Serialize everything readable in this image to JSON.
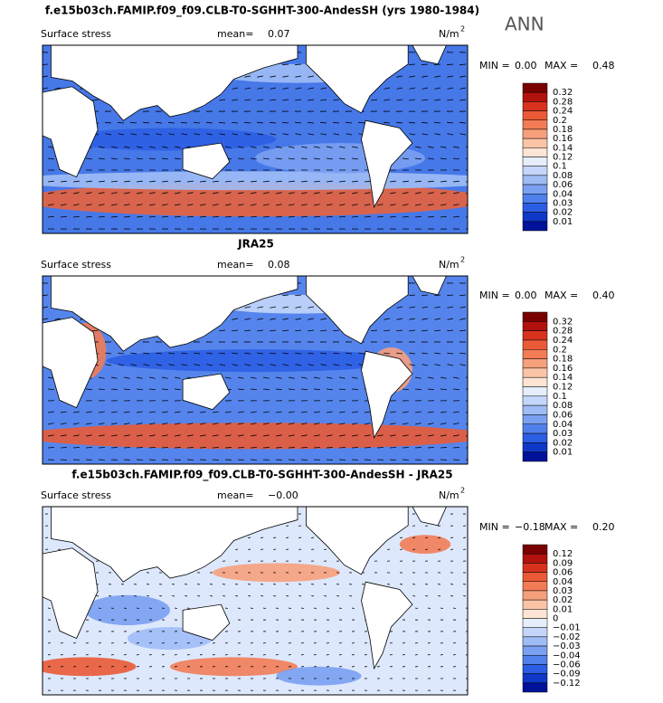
{
  "season": "ANN",
  "panels": [
    {
      "title": "f.e15b03ch.FAMIP.f09_f09.CLB-T0-SGHHT-300-AndesSH (yrs 1980-1984)",
      "variable": "Surface stress",
      "mean_label": "mean=",
      "mean": "0.07",
      "units": "N/m",
      "units_exponent": "2",
      "min_label": "MIN =",
      "min": "0.00",
      "max_label": "MAX =",
      "max": "0.48",
      "colorbar": {
        "labels": [
          "0.32",
          "0.28",
          "0.24",
          "0.2",
          "0.18",
          "0.16",
          "0.14",
          "0.12",
          "0.1",
          "0.08",
          "0.06",
          "0.04",
          "0.03",
          "0.02",
          "0.01"
        ],
        "colors": [
          "#7a0000",
          "#b2120e",
          "#d8321e",
          "#ea5a36",
          "#f27c56",
          "#f7a07c",
          "#fbc4a6",
          "#fde4d4",
          "#e6eefc",
          "#c4d6fa",
          "#9fbcf6",
          "#7aa0f2",
          "#5080ec",
          "#2c5ee4",
          "#1038c8",
          "#00129a"
        ]
      }
    },
    {
      "title": "JRA25",
      "variable": "Surface stress",
      "mean_label": "mean=",
      "mean": "0.08",
      "units": "N/m",
      "units_exponent": "2",
      "min_label": "MIN =",
      "min": "0.00",
      "max_label": "MAX =",
      "max": "0.40",
      "colorbar": {
        "labels": [
          "0.32",
          "0.28",
          "0.24",
          "0.2",
          "0.18",
          "0.16",
          "0.14",
          "0.12",
          "0.1",
          "0.08",
          "0.06",
          "0.04",
          "0.03",
          "0.02",
          "0.01"
        ],
        "colors": [
          "#7a0000",
          "#b2120e",
          "#d8321e",
          "#ea5a36",
          "#f27c56",
          "#f7a07c",
          "#fbc4a6",
          "#fde4d4",
          "#e6eefc",
          "#c4d6fa",
          "#9fbcf6",
          "#7aa0f2",
          "#5080ec",
          "#2c5ee4",
          "#1038c8",
          "#00129a"
        ]
      }
    },
    {
      "title": "f.e15b03ch.FAMIP.f09_f09.CLB-T0-SGHHT-300-AndesSH - JRA25",
      "variable": "Surface stress",
      "mean_label": "mean=",
      "mean": "−0.00",
      "units": "N/m",
      "units_exponent": "2",
      "min_label": "MIN =",
      "min": "−0.18",
      "max_label": "MAX =",
      "max": "0.20",
      "colorbar": {
        "labels": [
          "0.12",
          "0.09",
          "0.06",
          "0.04",
          "0.03",
          "0.02",
          "0.01",
          "0",
          "−0.01",
          "−0.02",
          "−0.03",
          "−0.04",
          "−0.06",
          "−0.09",
          "−0.12"
        ],
        "colors": [
          "#7a0000",
          "#b2120e",
          "#d8321e",
          "#ea5a36",
          "#f27c56",
          "#f7a07c",
          "#fbc4a6",
          "#fde4d4",
          "#e6eefc",
          "#c4d6fa",
          "#9fbcf6",
          "#7aa0f2",
          "#5080ec",
          "#2c5ee4",
          "#1038c8",
          "#00129a"
        ]
      }
    }
  ]
}
